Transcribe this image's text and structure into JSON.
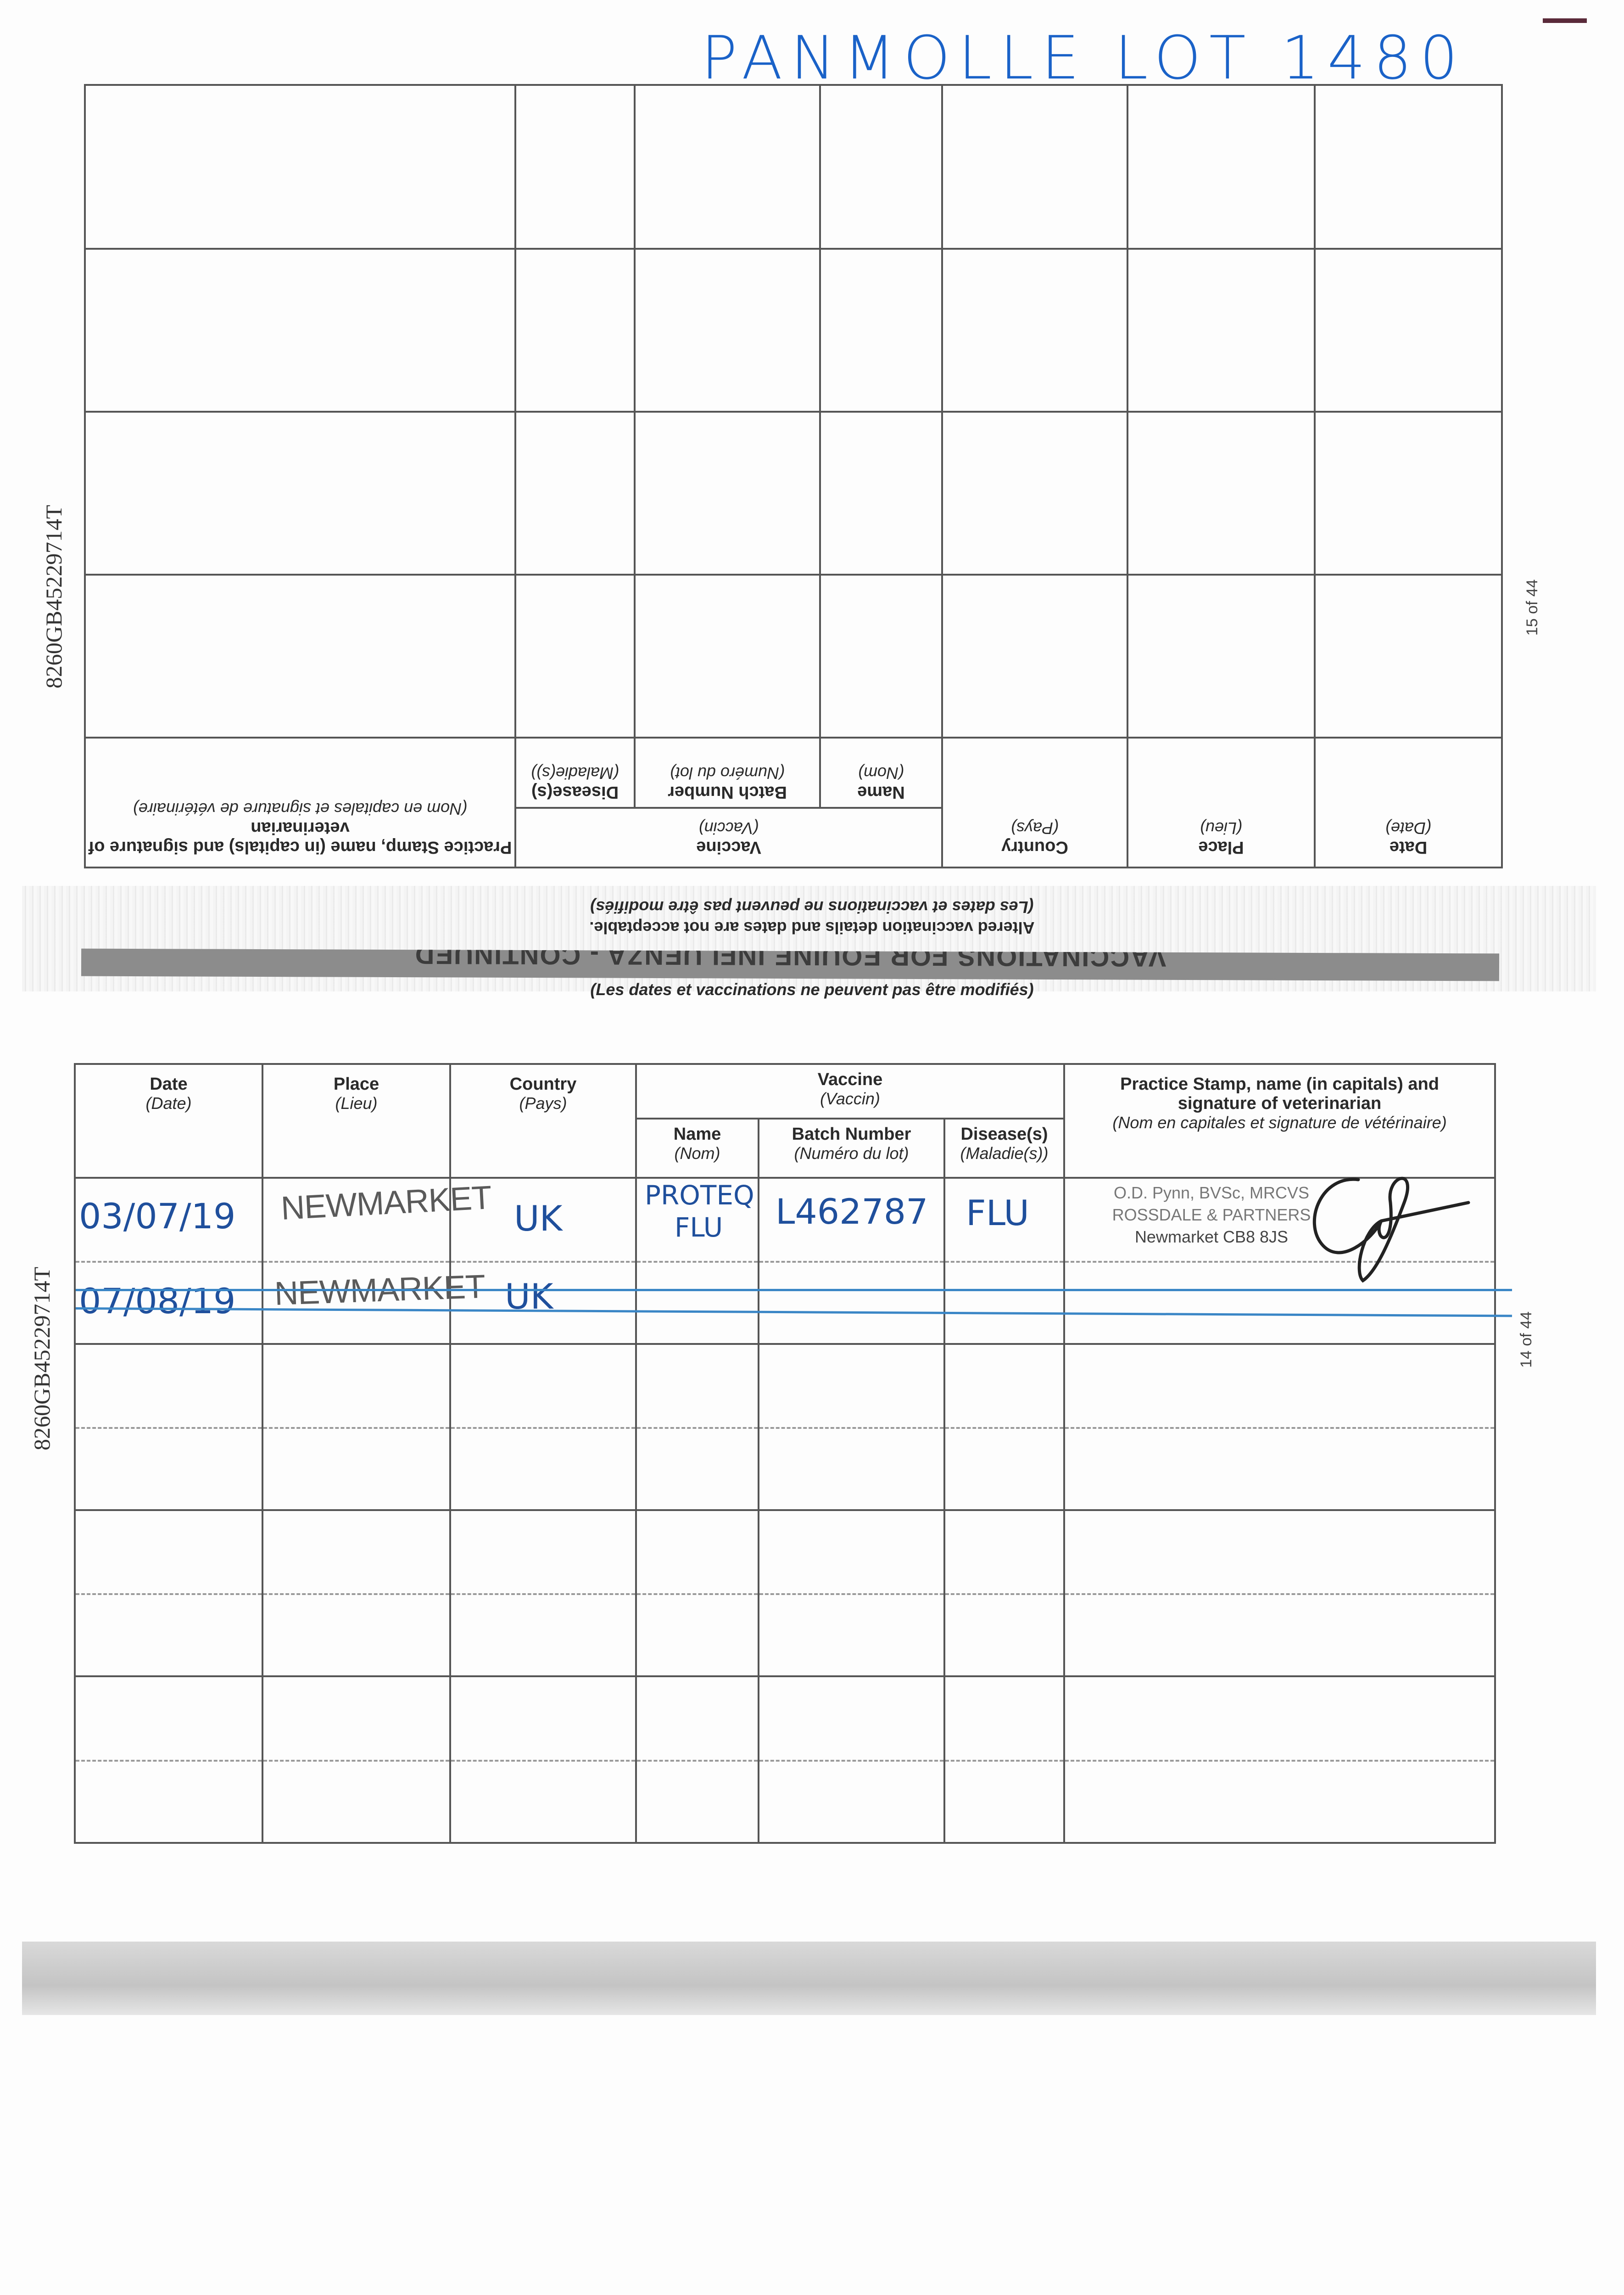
{
  "title_note": "PANMOLLE LOT 1480",
  "passport_number": "8260GB45229714T",
  "page_top": "15 of 44",
  "page_bottom": "14 of 44",
  "section_heading": "VACCINATIONS FOR EQUINE INFLUENZA - CONTINUED",
  "warning_en": "Altered vaccination details and dates are not acceptable.",
  "warning_fr": "(Les dates et vaccinations ne peuvent pas être modifiés)",
  "columns": {
    "date": {
      "en": "Date",
      "fr": "(Date)"
    },
    "place": {
      "en": "Place",
      "fr": "(Lieu)"
    },
    "country": {
      "en": "Country",
      "fr": "(Pays)"
    },
    "vaccine": {
      "en": "Vaccine",
      "fr": "(Vaccin)"
    },
    "name": {
      "en": "Name",
      "fr": "(Nom)"
    },
    "batch": {
      "en": "Batch Number",
      "fr": "(Numéro du lot)"
    },
    "disease": {
      "en": "Disease(s)",
      "fr": "(Maladie(s))"
    },
    "stamp": {
      "en": "Practice Stamp, name (in capitals) and signature of veterinarian",
      "fr": "(Nom en capitales et signature de vétérinaire)"
    }
  },
  "entries": [
    {
      "date": "03/07/19",
      "place": "NEWMARKET",
      "country": "UK",
      "name_line1": "PROTEQ",
      "name_line2": "FLU",
      "batch": "L462787",
      "disease": "FLU"
    },
    {
      "date": "07/08/19",
      "place": "NEWMARKET",
      "country": "UK"
    }
  ],
  "stamp": {
    "line1": "O.D. Pynn, BVSc, MRCVS",
    "line2": "ROSSDALE & PARTNERS",
    "line3": "Newmarket CB8 8JS"
  },
  "colors": {
    "ink_blue": "#1f4f9c",
    "title_blue": "#1a62c8",
    "stamp_grey": "#777777"
  }
}
